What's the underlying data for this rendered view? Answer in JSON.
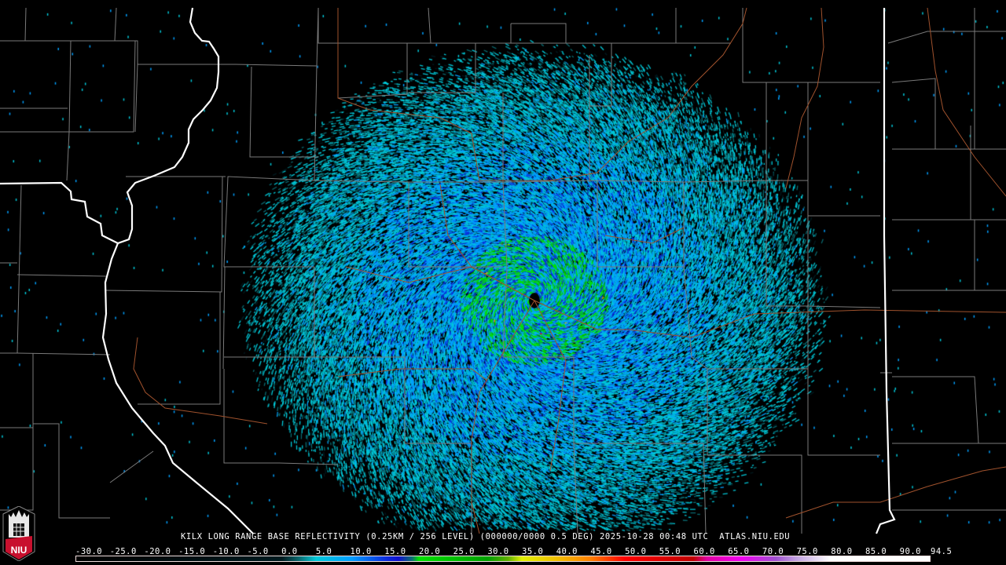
{
  "title": "KILX LONG RANGE BASE REFLECTIVITY (0.25KM / 256 LEVEL) (000000/0000 0.5 DEG) 2025-10-28 00:48 UTC  ATLAS.NIU.EDU",
  "logo_text": "NIU",
  "colorbar": {
    "min": -30.0,
    "max": 94.5,
    "labels": [
      "-30.0",
      "-25.0",
      "-20.0",
      "-15.0",
      "-10.0",
      "-5.0",
      "0.0",
      "5.0",
      "10.0",
      "15.0",
      "20.0",
      "25.0",
      "30.0",
      "35.0",
      "40.0",
      "45.0",
      "50.0",
      "55.0",
      "60.0",
      "65.0",
      "70.0",
      "75.0",
      "80.0",
      "85.0",
      "90.0",
      "94.5"
    ],
    "stops": [
      {
        "v": -30,
        "c": "#000000"
      },
      {
        "v": 0,
        "c": "#001a1f"
      },
      {
        "v": 2.5,
        "c": "#0a6a70"
      },
      {
        "v": 5,
        "c": "#00c8d8"
      },
      {
        "v": 10,
        "c": "#00a0ff"
      },
      {
        "v": 15,
        "c": "#0a30e0"
      },
      {
        "v": 17,
        "c": "#1010d0"
      },
      {
        "v": 19,
        "c": "#0a7070"
      },
      {
        "v": 20,
        "c": "#00e000"
      },
      {
        "v": 30,
        "c": "#00a000"
      },
      {
        "v": 33,
        "c": "#60b000"
      },
      {
        "v": 35,
        "c": "#e0f000"
      },
      {
        "v": 40,
        "c": "#f0c000"
      },
      {
        "v": 45,
        "c": "#ff8000"
      },
      {
        "v": 50,
        "c": "#ff0000"
      },
      {
        "v": 60,
        "c": "#c00000"
      },
      {
        "v": 62,
        "c": "#e000a0"
      },
      {
        "v": 67,
        "c": "#f000f0"
      },
      {
        "v": 72,
        "c": "#a050d0"
      },
      {
        "v": 75,
        "c": "#c0a0e0"
      },
      {
        "v": 80,
        "c": "#ffffff"
      },
      {
        "v": 94.5,
        "c": "#ffffff"
      }
    ]
  },
  "colors": {
    "state_border": "#ffffff",
    "county_border": "#808080",
    "rivers": "#a0522d",
    "background": "#000000"
  }
}
